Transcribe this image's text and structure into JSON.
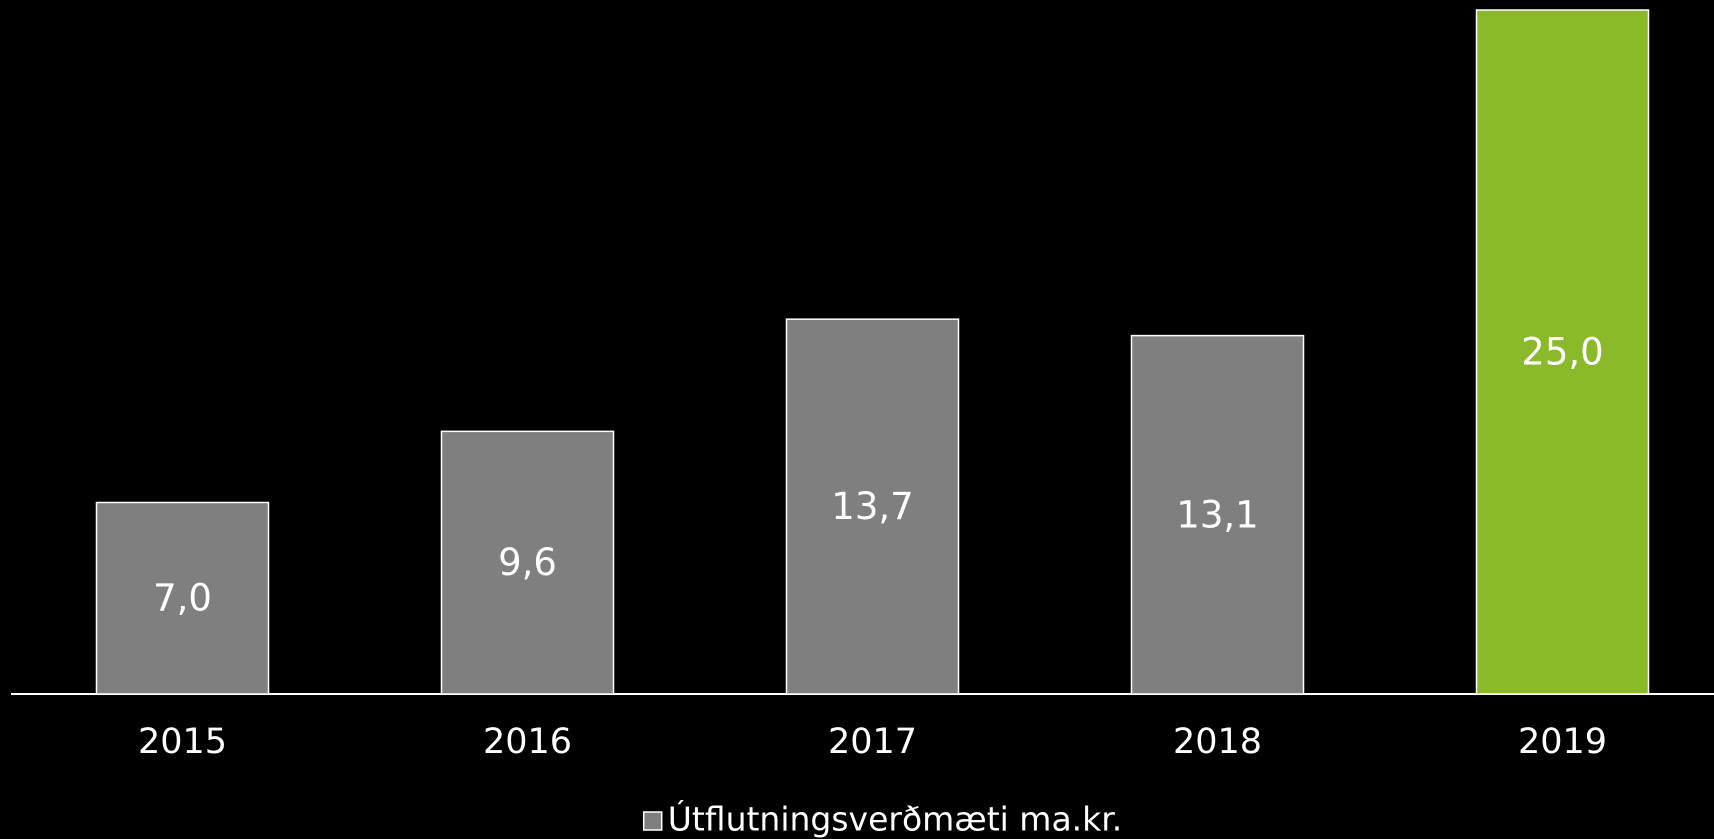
{
  "chart_data": {
    "type": "bar",
    "categories": [
      "2015",
      "2016",
      "2017",
      "2018",
      "2019"
    ],
    "series": [
      {
        "name": "Útflutningsverðmæti ma.kr.",
        "color": "#7f7f7f",
        "colors": [
          "#7f7f7f",
          "#7f7f7f",
          "#7f7f7f",
          "#7f7f7f",
          "#8aba2a"
        ],
        "values": [
          7.0,
          9.6,
          13.7,
          13.1,
          25.0
        ],
        "value_labels": [
          "7,0",
          "9,6",
          "13,7",
          "13,1",
          "25,0"
        ]
      }
    ],
    "legend": "bottom"
  }
}
